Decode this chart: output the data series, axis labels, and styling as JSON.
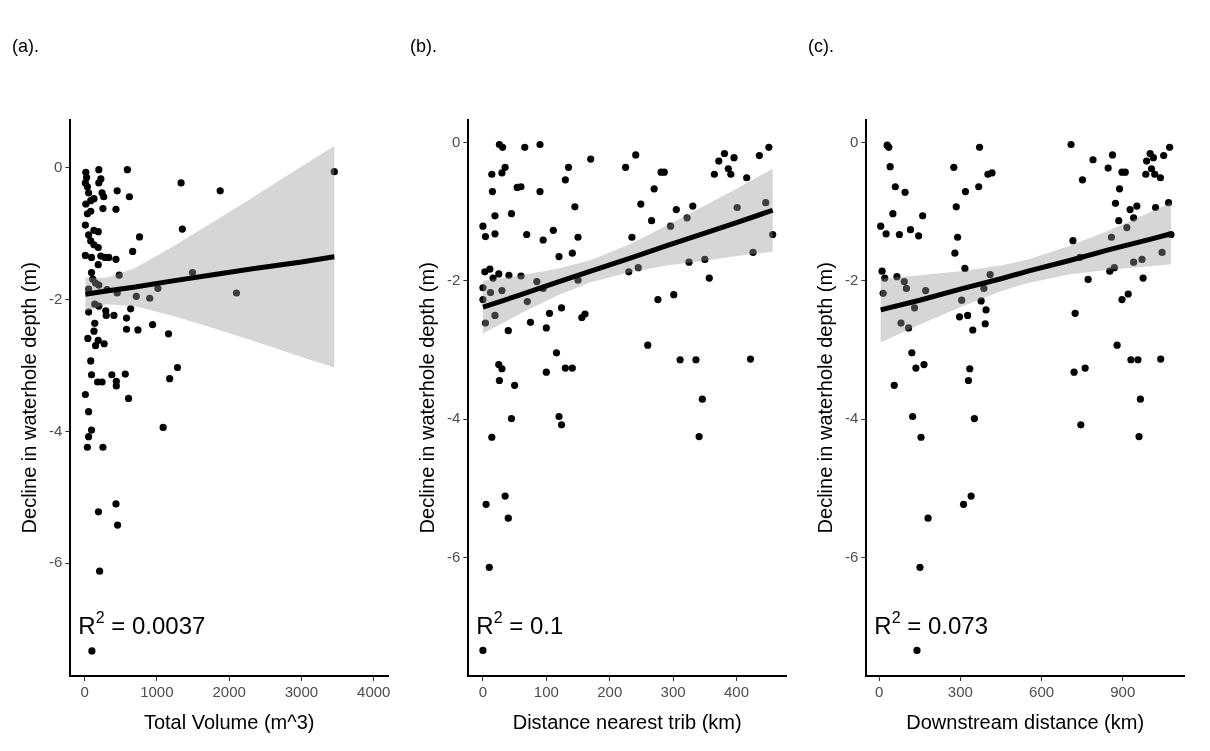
{
  "chart_data": [
    {
      "type": "scatter",
      "title": "(a).",
      "xlabel": "Total Volume (m^3)",
      "ylabel": "Decline in waterhole depth (m)",
      "annotations": [
        "R$^{2}$ = 0.0037"
      ],
      "xlim": [
        -197,
        4197
      ],
      "ylim": [
        -7.71,
        0.73
      ],
      "xticks": [
        0,
        1000,
        2000,
        3000,
        4000
      ],
      "yticks": [
        -6,
        -4,
        -2,
        0
      ],
      "grid": false,
      "legend": false,
      "series": [
        {
          "marker": "circle",
          "color": "#000000",
          "x": [
            17,
            28,
            11,
            39,
            56,
            17,
            85,
            130,
            39,
            85,
            197,
            225,
            197,
            242,
            265,
            254,
            451,
            434,
            592,
            620,
            1335,
            1876,
            3454,
            1352,
            760,
            665,
            11,
            56,
            130,
            189,
            85,
            130,
            189,
            11,
            96,
            225,
            282,
            335,
            434,
            189,
            96,
            479,
            1493,
            56,
            113,
            152,
            197,
            310,
            451,
            716,
            901,
            1014,
            2101,
            56,
            141,
            197,
            293,
            406,
            299,
            637,
            580,
            580,
            738,
            941,
            1161,
            141,
            45,
            130,
            189,
            152,
            271,
            85,
            96,
            180,
            242,
            377,
            439,
            439,
            563,
            608,
            1177,
            1285,
            11,
            56,
            96,
            56,
            39,
            254,
            1087,
            434,
            192,
            456,
            208,
            101
          ],
          "values": [
            -0.07,
            -0.15,
            -0.23,
            -0.29,
            -0.38,
            -0.55,
            -0.5,
            -0.47,
            -0.7,
            -0.66,
            -0.03,
            -0.17,
            -0.23,
            -0.38,
            -0.44,
            -0.62,
            -0.35,
            -0.63,
            -0.03,
            -0.44,
            -0.23,
            -0.35,
            -0.06,
            -0.93,
            -1.05,
            -1.27,
            -0.87,
            -1.02,
            -0.95,
            -0.97,
            -1.11,
            -1.17,
            -1.21,
            -1.33,
            -1.36,
            -1.34,
            -1.36,
            -1.36,
            -1.39,
            -1.47,
            -1.59,
            -1.63,
            -1.59,
            -1.84,
            -1.69,
            -1.75,
            -1.78,
            -1.85,
            -1.9,
            -1.95,
            -1.98,
            -1.83,
            -1.9,
            -2.19,
            -2.07,
            -2.1,
            -2.17,
            -2.24,
            -2.24,
            -2.14,
            -2.28,
            -2.45,
            -2.46,
            -2.38,
            -2.52,
            -2.36,
            -2.59,
            -2.48,
            -2.62,
            -2.7,
            -2.67,
            -2.93,
            -3.14,
            -3.25,
            -3.25,
            -3.14,
            -3.24,
            -3.31,
            -3.13,
            -3.5,
            -3.2,
            -3.03,
            -3.44,
            -3.7,
            -3.98,
            -4.08,
            -4.24,
            -4.24,
            -3.94,
            -5.1,
            -5.22,
            -5.42,
            -6.12,
            -7.33
          ]
        },
        {
          "type": "line",
          "marker": "none",
          "color": "#000000",
          "x": [
            11,
            300,
            700,
            1200,
            1800,
            2400,
            3000,
            3454
          ],
          "values": [
            -1.92,
            -1.87,
            -1.81,
            -1.72,
            -1.62,
            -1.52,
            -1.43,
            -1.35
          ],
          "lower": [
            -2.18,
            -2.07,
            -2.1,
            -2.24,
            -2.44,
            -2.65,
            -2.87,
            -3.03
          ],
          "upper": [
            -1.67,
            -1.67,
            -1.52,
            -1.21,
            -0.81,
            -0.4,
            0.02,
            0.33
          ]
        }
      ]
    },
    {
      "type": "scatter",
      "title": "(b).",
      "xlabel": "Distance nearest trib (km)",
      "ylabel": "Decline in waterhole depth (m)",
      "annotations": [
        "R$^{2}$ = 0.1"
      ],
      "xlim": [
        -23,
        478
      ],
      "ylim": [
        -7.71,
        0.33
      ],
      "xticks": [
        0,
        100,
        200,
        300,
        400
      ],
      "yticks": [
        -6,
        -4,
        -2,
        0
      ],
      "grid": false,
      "legend": false,
      "series": [
        {
          "marker": "circle",
          "color": "#000000",
          "x": [
            0,
            4,
            14,
            15,
            19,
            19,
            30,
            35,
            45,
            54,
            60,
            69,
            90,
            95,
            111,
            120,
            130,
            135,
            141,
            145,
            150,
            170,
            225,
            241,
            249,
            266,
            270,
            281,
            286,
            296,
            305,
            322,
            331,
            365,
            372,
            381,
            387,
            391,
            396,
            401,
            416,
            436,
            446,
            451,
            457,
            426,
            325,
            350,
            357,
            230,
            245,
            235,
            276,
            301,
            260,
            311,
            336,
            422,
            346,
            341,
            0,
            0,
            4,
            3,
            11,
            12,
            16,
            19,
            25,
            30,
            41,
            60,
            70,
            75,
            85,
            95,
            100,
            105,
            124,
            150,
            156,
            161,
            40,
            25,
            30,
            26,
            50,
            45,
            116,
            130,
            141,
            100,
            120,
            124,
            14,
            35,
            5,
            40,
            10,
            0,
            26,
            31,
            66,
            90
          ],
          "values": [
            -1.21,
            -1.36,
            -0.46,
            -0.71,
            -1.06,
            -1.32,
            -0.44,
            -0.36,
            -1.03,
            -0.65,
            -0.64,
            -1.33,
            -0.71,
            -1.41,
            -1.27,
            -1.65,
            -0.54,
            -0.36,
            -1.6,
            -0.93,
            -1.37,
            -0.24,
            -0.36,
            -0.18,
            -0.89,
            -1.13,
            -0.67,
            -0.43,
            -0.43,
            -1.21,
            -0.97,
            -1.09,
            -0.92,
            -0.46,
            -0.27,
            -0.16,
            -0.38,
            -0.46,
            -0.22,
            -0.94,
            -0.51,
            -0.19,
            -0.87,
            -0.07,
            -1.33,
            -1.59,
            -1.73,
            -1.69,
            -1.96,
            -1.87,
            -1.81,
            -1.37,
            -2.27,
            -2.2,
            -2.93,
            -3.14,
            -3.14,
            -3.13,
            -3.71,
            -4.25,
            -2.1,
            -2.27,
            -2.61,
            -1.87,
            -1.83,
            -2.17,
            -1.96,
            -2.5,
            -1.9,
            -2.14,
            -1.92,
            -1.93,
            -2.3,
            -2.6,
            -2.01,
            -2.11,
            -2.68,
            -2.47,
            -2.39,
            -1.99,
            -2.53,
            -2.48,
            -2.72,
            -3.21,
            -3.27,
            -3.44,
            -3.51,
            -3.99,
            -3.04,
            -3.26,
            -3.26,
            -3.32,
            -3.96,
            -4.08,
            -4.26,
            -5.11,
            -5.23,
            -5.43,
            -6.14,
            -7.34,
            -0.03,
            -0.07,
            -0.07,
            -0.03
          ]
        },
        {
          "type": "line",
          "marker": "none",
          "color": "#000000",
          "x": [
            0,
            60,
            120,
            170,
            230,
            290,
            350,
            400,
            457
          ],
          "values": [
            -2.38,
            -2.2,
            -2.01,
            -1.86,
            -1.68,
            -1.49,
            -1.31,
            -1.16,
            -0.98
          ],
          "lower": [
            -2.76,
            -2.47,
            -2.2,
            -2.02,
            -1.88,
            -1.78,
            -1.71,
            -1.64,
            -1.58
          ],
          "upper": [
            -2.0,
            -1.92,
            -1.82,
            -1.7,
            -1.48,
            -1.2,
            -0.91,
            -0.67,
            -0.38
          ]
        }
      ]
    },
    {
      "type": "scatter",
      "title": "(c).",
      "xlabel": "Downstream distance (km)",
      "ylabel": "Decline in waterhole depth (m)",
      "annotations": [
        "R$^{2}$ = 0.073"
      ],
      "xlim": [
        -47,
        1126
      ],
      "ylim": [
        -7.71,
        0.33
      ],
      "xticks": [
        0,
        300,
        600,
        900
      ],
      "yticks": [
        -6,
        -4,
        -2,
        0
      ],
      "grid": false,
      "legend": false,
      "series": [
        {
          "marker": "circle",
          "color": "#000000",
          "x": [
            30,
            36,
            41,
            60,
            51,
            96,
            6,
            26,
            75,
            116,
            146,
            161,
            11,
            21,
            15,
            66,
            81,
            93,
            101,
            109,
            131,
            172,
            121,
            136,
            166,
            56,
            124,
            155,
            181,
            151,
            140,
            276,
            319,
            368,
            371,
            402,
            417,
            285,
            290,
            280,
            317,
            305,
            297,
            327,
            346,
            335,
            330,
            352,
            340,
            312,
            377,
            387,
            395,
            392,
            410,
            709,
            751,
            790,
            716,
            742,
            772,
            724,
            720,
            761,
            745,
            846,
            862,
            873,
            888,
            885,
            858,
            869,
            852,
            879,
            897,
            909,
            915,
            927,
            940,
            952,
            897,
            920,
            940,
            971,
            975,
            930,
            956,
            965,
            960,
            988,
            1001,
            1013,
            985,
            1006,
            1018,
            1039,
            1051,
            1073,
            1069,
            1021,
            1078,
            1045,
            1040
          ],
          "values": [
            -0.04,
            -0.07,
            -0.35,
            -0.64,
            -1.03,
            -0.72,
            -1.21,
            -1.32,
            -1.33,
            -1.26,
            -1.35,
            -1.06,
            -1.86,
            -1.96,
            -2.18,
            -1.94,
            -2.61,
            -2.01,
            -2.11,
            -2.68,
            -2.39,
            -2.14,
            -3.04,
            -3.26,
            -3.21,
            -3.51,
            -3.96,
            -4.26,
            -5.43,
            -6.14,
            -7.34,
            -0.36,
            -0.71,
            -0.64,
            -0.07,
            -0.46,
            -0.44,
            -0.93,
            -1.37,
            -1.6,
            -1.82,
            -2.28,
            -2.52,
            -2.5,
            -2.71,
            -3.27,
            -3.44,
            -3.99,
            -5.11,
            -5.23,
            -2.29,
            -2.11,
            -2.42,
            -2.62,
            -1.91,
            -0.03,
            -0.54,
            -0.25,
            -1.42,
            -1.66,
            -1.98,
            -2.47,
            -3.32,
            -3.26,
            -4.08,
            -0.37,
            -0.18,
            -0.88,
            -0.67,
            -1.13,
            -1.37,
            -1.81,
            -1.86,
            -2.93,
            -0.43,
            -0.43,
            -1.23,
            -0.97,
            -1.09,
            -0.92,
            -2.27,
            -2.19,
            -1.73,
            -1.69,
            -1.96,
            -3.14,
            -3.14,
            -3.71,
            -4.25,
            -0.27,
            -0.16,
            -0.22,
            -0.46,
            -0.38,
            -0.46,
            -0.51,
            -0.19,
            -0.07,
            -0.87,
            -0.94,
            -1.33,
            -1.59,
            -3.13
          ]
        },
        {
          "type": "line",
          "marker": "none",
          "color": "#000000",
          "x": [
            6,
            150,
            300,
            450,
            550,
            700,
            850,
            1000,
            1078
          ],
          "values": [
            -2.42,
            -2.28,
            -2.12,
            -1.97,
            -1.86,
            -1.71,
            -1.55,
            -1.4,
            -1.32
          ],
          "lower": [
            -2.89,
            -2.63,
            -2.38,
            -2.15,
            -2.03,
            -1.91,
            -1.84,
            -1.79,
            -1.76
          ],
          "upper": [
            -1.97,
            -1.92,
            -1.86,
            -1.78,
            -1.69,
            -1.5,
            -1.27,
            -1.01,
            -0.87
          ]
        }
      ]
    }
  ]
}
